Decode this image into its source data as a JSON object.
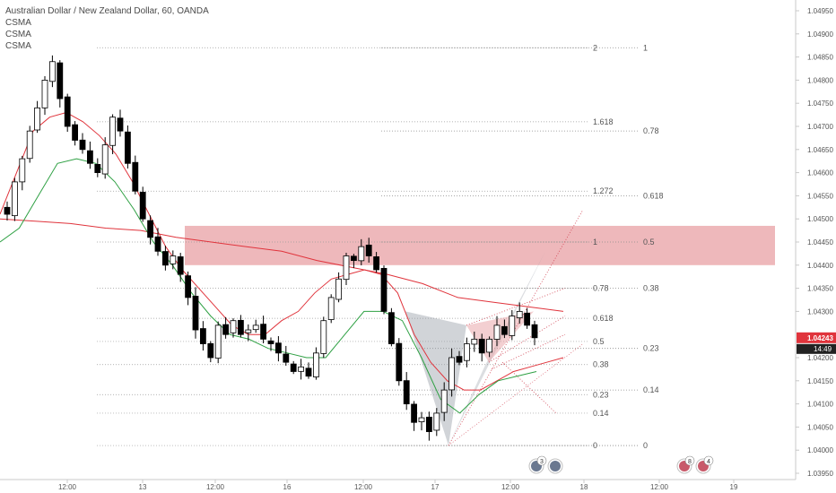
{
  "header": {
    "title": "Australian Dollar / New Zealand Dollar, 60, OANDA",
    "indicators": [
      "CSMA",
      "CSMA",
      "CSMA"
    ]
  },
  "price_axis": {
    "ticks": [
      "1.04950",
      "1.04900",
      "1.04850",
      "1.04800",
      "1.04750",
      "1.04700",
      "1.04650",
      "1.04600",
      "1.04550",
      "1.04500",
      "1.04450",
      "1.04400",
      "1.04350",
      "1.04300",
      "1.04200",
      "1.04150",
      "1.04100",
      "1.04050",
      "1.04000",
      "1.03950"
    ],
    "last_price": "1.04243",
    "countdown": "14:49",
    "price_color": "#e0343c"
  },
  "time_axis": {
    "labels": [
      "12:00",
      "13",
      "12:00",
      "16",
      "12:00",
      "17",
      "12:00",
      "18",
      "12:00",
      "19"
    ]
  },
  "fib_right": {
    "labels": [
      "1",
      "0.78",
      "0.618",
      "0.5",
      "0.38",
      "0.23",
      "0.14",
      "0"
    ],
    "prices": [
      1.0487,
      1.0469,
      1.0455,
      1.0445,
      1.0435,
      1.0422,
      1.0413,
      1.0401
    ]
  },
  "fib_left": {
    "labels": [
      "2",
      "1.618",
      "1.272",
      "1",
      "0.78",
      "0.618",
      "0.5",
      "0.38",
      "0.23",
      "0.14",
      "0"
    ],
    "prices": [
      1.0487,
      1.0471,
      1.0456,
      1.0445,
      1.0435,
      1.04285,
      1.04235,
      1.04185,
      1.0412,
      1.0408,
      1.0401
    ]
  },
  "zone": {
    "from": 1.044,
    "to": 1.04485,
    "color": "#e8a0a4"
  },
  "events": [
    {
      "badge": "3",
      "x_date": "Jan 17 ~20:00"
    },
    {
      "badge": "",
      "x_date": "Jan 17 ~21:00"
    },
    {
      "badge": "8",
      "x_date": "Jan 18 ~18:00"
    },
    {
      "badge": "4",
      "x_date": "Jan 18 ~19:00"
    }
  ],
  "chart_data": {
    "type": "candlestick",
    "title": "Australian Dollar / New Zealand Dollar, 60, OANDA",
    "xlabel": "",
    "ylabel": "",
    "ylim": [
      1.0393,
      1.0498
    ],
    "colors": {
      "up": "#ffffff",
      "down": "#000000",
      "wick": "#000000",
      "ma_red": "#e0343c",
      "ma_green": "#2ea043"
    },
    "candles_close_path": [
      1.0451,
      1.0458,
      1.0463,
      1.0469,
      1.0474,
      1.048,
      1.0484,
      1.0476,
      1.047,
      1.0467,
      1.0465,
      1.0462,
      1.046,
      1.0466,
      1.0472,
      1.0469,
      1.0462,
      1.0456,
      1.045,
      1.0446,
      1.0443,
      1.044,
      1.0442,
      1.0438,
      1.0433,
      1.0426,
      1.0423,
      1.042,
      1.0427,
      1.0425,
      1.0428,
      1.0425,
      1.0426,
      1.0427,
      1.0424,
      1.0423,
      1.0421,
      1.0419,
      1.0417,
      1.0418,
      1.0416,
      1.0421,
      1.0428,
      1.0433,
      1.0437,
      1.0442,
      1.0441,
      1.0444,
      1.0442,
      1.0439,
      1.043,
      1.0423,
      1.0415,
      1.041,
      1.0406,
      1.0407,
      1.0404,
      1.0408,
      1.0413,
      1.042,
      1.0419,
      1.0423,
      1.0424,
      1.0421,
      1.0424,
      1.0427,
      1.0425,
      1.0429,
      1.043,
      1.0427,
      1.04243
    ],
    "ma_red_fast": [
      1.0451,
      1.046,
      1.0469,
      1.0472,
      1.0473,
      1.0471,
      1.0468,
      1.0464,
      1.0458,
      1.0451,
      1.0444,
      1.0439,
      1.0435,
      1.0431,
      1.0427,
      1.0425,
      1.0425,
      1.0428,
      1.043,
      1.0434,
      1.0437,
      1.0438,
      1.0439,
      1.0438,
      1.0434,
      1.0425,
      1.0419,
      1.0415,
      1.0413,
      1.0413,
      1.0415,
      1.0417,
      1.0418,
      1.0419,
      1.042
    ],
    "ma_red_slow": [
      1.045,
      1.04495,
      1.0449,
      1.0448,
      1.04475,
      1.0446,
      1.0445,
      1.0444,
      1.0443,
      1.0441,
      1.04395,
      1.0438,
      1.0436,
      1.0433,
      1.0432,
      1.0431,
      1.043
    ],
    "ma_green": [
      1.0445,
      1.0448,
      1.0455,
      1.0462,
      1.0463,
      1.0462,
      1.0458,
      1.0452,
      1.0445,
      1.044,
      1.0434,
      1.0429,
      1.0425,
      1.0424,
      1.0422,
      1.0421,
      1.042,
      1.042,
      1.0425,
      1.043,
      1.043,
      1.0428,
      1.042,
      1.0411,
      1.0408,
      1.0412,
      1.0415,
      1.0416,
      1.0417
    ],
    "pattern": {
      "X": 1.0427,
      "A": 1.0401,
      "B": 1.0427,
      "C": 1.0418,
      "D_projection": 1.0444
    }
  }
}
